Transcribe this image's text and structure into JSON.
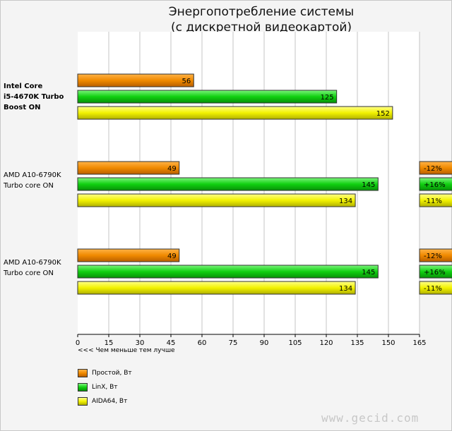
{
  "chart_data": {
    "type": "bar",
    "orientation": "horizontal",
    "title_line1": "Энергопотребление системы",
    "title_line2": "(с дискретной видеокартой)",
    "categories": [
      {
        "lines": [
          "Intel Core",
          "i5-4670K Turbo",
          "Boost ON"
        ],
        "bold": true
      },
      {
        "lines": [
          "AMD A10-6790K",
          "Turbo core ON"
        ],
        "bold": false
      },
      {
        "lines": [
          "AMD A10-6790K",
          "Turbo core ON"
        ],
        "bold": false
      }
    ],
    "series": [
      {
        "name": "Простой, Вт",
        "color": "#f08a00",
        "values": [
          56,
          49,
          49
        ],
        "deltas": [
          null,
          "-12%",
          "-12%"
        ]
      },
      {
        "name": "LinX, Вт",
        "color": "#11d011",
        "values": [
          125,
          145,
          145
        ],
        "deltas": [
          null,
          "+16%",
          "+16%"
        ]
      },
      {
        "name": "AIDA64, Вт",
        "color": "#f2f200",
        "values": [
          152,
          134,
          134
        ],
        "deltas": [
          null,
          "-11%",
          "-11%"
        ]
      }
    ],
    "xlim": [
      0,
      165
    ],
    "xticks": [
      0,
      15,
      30,
      45,
      60,
      75,
      90,
      105,
      120,
      135,
      150,
      165
    ],
    "xlabel": "<<< Чем меньше тем лучше",
    "grid": true,
    "legend_position": "bottom-left"
  },
  "watermark": "www.gecid.com"
}
